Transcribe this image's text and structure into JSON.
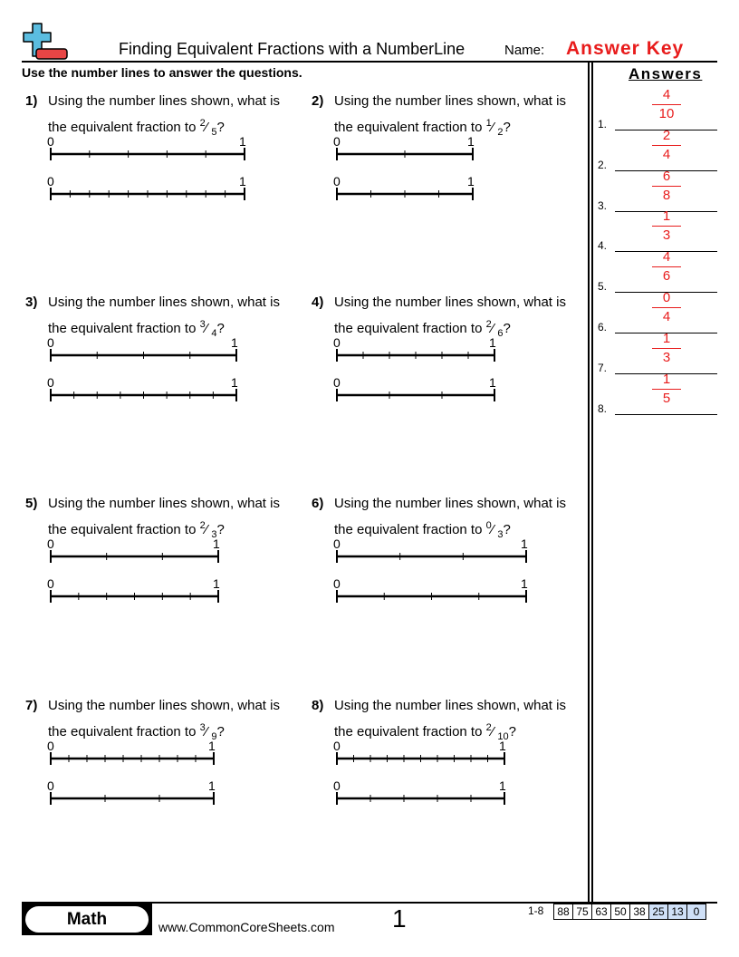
{
  "header": {
    "title": "Finding Equivalent Fractions with a NumberLine",
    "name_label": "Name:",
    "name_value": "Answer Key",
    "logo_icon": "plus-minus-logo-icon"
  },
  "instructions": "Use the number lines to answer the questions.",
  "answers_heading": "Answers",
  "questions": [
    {
      "number": "1)",
      "line1": "Using the number lines shown, what is",
      "line2_prefix": "the equivalent fraction to ",
      "num": "2",
      "den": "5",
      "suffix": "?",
      "top_divisions": 5,
      "bottom_divisions": 10,
      "label_start": "0",
      "label_end": "1"
    },
    {
      "number": "2)",
      "line1": "Using the number lines shown, what is",
      "line2_prefix": "the equivalent fraction to ",
      "num": "1",
      "den": "2",
      "suffix": "?",
      "top_divisions": 2,
      "bottom_divisions": 4,
      "label_start": "0",
      "label_end": "1"
    },
    {
      "number": "3)",
      "line1": "Using the number lines shown, what is",
      "line2_prefix": "the equivalent fraction to ",
      "num": "3",
      "den": "4",
      "suffix": "?",
      "top_divisions": 4,
      "bottom_divisions": 8,
      "label_start": "0",
      "label_end": "1"
    },
    {
      "number": "4)",
      "line1": "Using the number lines shown, what is",
      "line2_prefix": "the equivalent fraction to ",
      "num": "2",
      "den": "6",
      "suffix": "?",
      "top_divisions": 6,
      "bottom_divisions": 3,
      "label_start": "0",
      "label_end": "1"
    },
    {
      "number": "5)",
      "line1": "Using the number lines shown, what is",
      "line2_prefix": "the equivalent fraction to ",
      "num": "2",
      "den": "3",
      "suffix": "?",
      "top_divisions": 3,
      "bottom_divisions": 6,
      "label_start": "0",
      "label_end": "1"
    },
    {
      "number": "6)",
      "line1": "Using the number lines shown, what is",
      "line2_prefix": "the equivalent fraction to ",
      "num": "0",
      "den": "3",
      "suffix": "?",
      "top_divisions": 3,
      "bottom_divisions": 4,
      "label_start": "0",
      "label_end": "1"
    },
    {
      "number": "7)",
      "line1": "Using the number lines shown, what is",
      "line2_prefix": "the equivalent fraction to ",
      "num": "3",
      "den": "9",
      "suffix": "?",
      "top_divisions": 9,
      "bottom_divisions": 3,
      "label_start": "0",
      "label_end": "1"
    },
    {
      "number": "8)",
      "line1": "Using the number lines shown, what is",
      "line2_prefix": "the equivalent fraction to ",
      "num": "2",
      "den": "10",
      "suffix": "?",
      "top_divisions": 10,
      "bottom_divisions": 5,
      "label_start": "0",
      "label_end": "1"
    }
  ],
  "answers": [
    {
      "label": "1.",
      "num": "4",
      "den": "10"
    },
    {
      "label": "2.",
      "num": "2",
      "den": "4"
    },
    {
      "label": "3.",
      "num": "6",
      "den": "8"
    },
    {
      "label": "4.",
      "num": "1",
      "den": "3"
    },
    {
      "label": "5.",
      "num": "4",
      "den": "6"
    },
    {
      "label": "6.",
      "num": "0",
      "den": "4"
    },
    {
      "label": "7.",
      "num": "1",
      "den": "3"
    },
    {
      "label": "8.",
      "num": "1",
      "den": "5"
    }
  ],
  "footer": {
    "subject": "Math",
    "url": "www.CommonCoreSheets.com",
    "page": "1",
    "range": "1-8",
    "scores": [
      "88",
      "75",
      "63",
      "50",
      "38",
      "25",
      "13",
      "0"
    ],
    "highlight_color": "#cfe0f7"
  },
  "colors": {
    "accent": "#e81c1c",
    "logo_blue": "#5bbde0",
    "logo_red": "#e84545"
  }
}
